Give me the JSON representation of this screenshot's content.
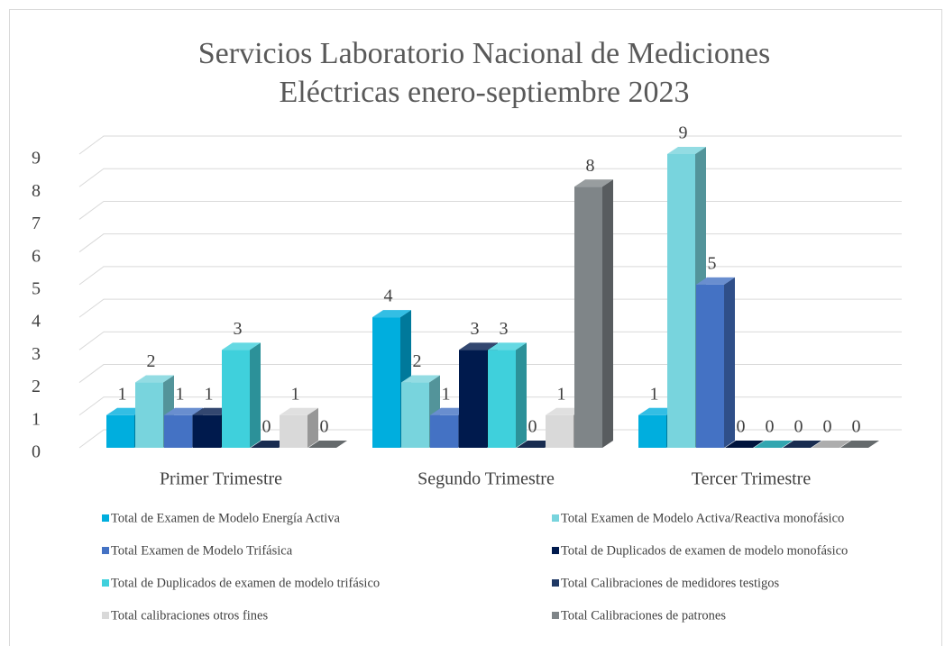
{
  "chart_data": {
    "type": "bar3d",
    "title": "Servicios Laboratorio Nacional de Mediciones Eléctricas enero-septiembre 2023",
    "categories": [
      "Primer Trimestre",
      "Segundo Trimestre",
      "Tercer Trimestre"
    ],
    "ylim": [
      0,
      9
    ],
    "yticks": [
      0,
      1,
      2,
      3,
      4,
      5,
      6,
      7,
      8,
      9
    ],
    "grid": true,
    "series": [
      {
        "name": "Total de Examen de Modelo Energía Activa",
        "color": "#00aede",
        "values": [
          1,
          4,
          1
        ]
      },
      {
        "name": "Total Examen de Modelo Activa/Reactiva monofásico",
        "color": "#78d4dd",
        "values": [
          2,
          2,
          9
        ]
      },
      {
        "name": "Total Examen de Modelo Trifásica",
        "color": "#4472c4",
        "values": [
          1,
          1,
          5
        ]
      },
      {
        "name": "Total de Duplicados de examen de modelo monofásico",
        "color": "#001a4d",
        "values": [
          1,
          3,
          0
        ]
      },
      {
        "name": "Total de Duplicados de examen de modelo trifásico",
        "color": "#3fd0dc",
        "values": [
          3,
          3,
          0
        ]
      },
      {
        "name": "Total Calibraciones de medidores testigos",
        "color": "#1f3864",
        "values": [
          0,
          0,
          0
        ]
      },
      {
        "name": "Total calibraciones otros fines",
        "color": "#d9d9d9",
        "values": [
          1,
          1,
          0
        ]
      },
      {
        "name": "Total Calibraciones de patrones",
        "color": "#7f8588",
        "values": [
          0,
          8,
          0
        ]
      }
    ]
  }
}
